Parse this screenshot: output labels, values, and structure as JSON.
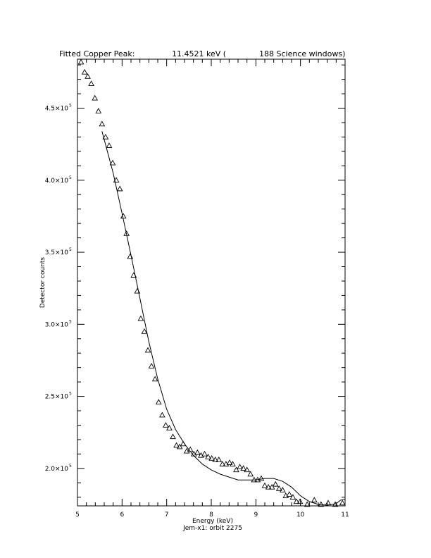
{
  "header": {
    "title_left": "Fitted Copper Peak:",
    "title_mid": "11.4521 keV (",
    "title_right": "188 Science windows)"
  },
  "chart_data": {
    "type": "scatter",
    "title": "Fitted Copper Peak: 11.4521 keV ( 188 Science windows)",
    "xlabel": "Energy (keV)",
    "subtitle": "Jem-x1: orbit 2275",
    "ylabel": "Detector counts",
    "xlim": [
      5,
      11
    ],
    "ylim": [
      174000,
      484000
    ],
    "x_ticks": [
      5,
      6,
      7,
      8,
      9,
      10,
      11
    ],
    "y_ticks": [
      {
        "value": 200000,
        "label": "2.0×10",
        "exp": "5"
      },
      {
        "value": 250000,
        "label": "2.5×10",
        "exp": "5"
      },
      {
        "value": 300000,
        "label": "3.0×10",
        "exp": "5"
      },
      {
        "value": 350000,
        "label": "3.5×10",
        "exp": "5"
      },
      {
        "value": 400000,
        "label": "4.0×10",
        "exp": "5"
      },
      {
        "value": 450000,
        "label": "4.5×10",
        "exp": "5"
      }
    ],
    "series": [
      {
        "marker": "triangle",
        "x": [
          5.08,
          5.16,
          5.23,
          5.31,
          5.39,
          5.47,
          5.55,
          5.63,
          5.71,
          5.79,
          5.87,
          5.95,
          6.03,
          6.1,
          6.18,
          6.26,
          6.34,
          6.42,
          6.5,
          6.58,
          6.66,
          6.74,
          6.82,
          6.9,
          6.98,
          7.06,
          7.14,
          7.22,
          7.29,
          7.37,
          7.45,
          7.53,
          7.61,
          7.69,
          7.77,
          7.85,
          7.93,
          8.01,
          8.09,
          8.17,
          8.25,
          8.33,
          8.41,
          8.48,
          8.56,
          8.64,
          8.72,
          8.8,
          8.88,
          8.96,
          9.04,
          9.12,
          9.2,
          9.28,
          9.36,
          9.44,
          9.52,
          9.6,
          9.67,
          9.75,
          9.83,
          9.91,
          9.99,
          10.15,
          10.31,
          10.46,
          10.62,
          10.78,
          10.94
        ],
        "y": [
          482000,
          475000,
          472000,
          467000,
          457000,
          448000,
          439000,
          430000,
          424000,
          412000,
          400000,
          394000,
          375000,
          363000,
          347000,
          334000,
          323000,
          304000,
          295000,
          282000,
          271000,
          262000,
          246000,
          237000,
          230000,
          228000,
          222000,
          216000,
          215000,
          217000,
          212000,
          213000,
          210000,
          211000,
          209000,
          210000,
          208000,
          207000,
          206000,
          206000,
          203000,
          203000,
          204000,
          203000,
          199000,
          201000,
          200000,
          199000,
          196000,
          192000,
          192000,
          193000,
          188000,
          187000,
          187000,
          189000,
          186000,
          185000,
          181000,
          182000,
          180000,
          177000,
          177000,
          175000,
          178000,
          175000,
          176000,
          175000,
          176000
        ]
      },
      {
        "marker": "line",
        "x": [
          5.55,
          5.8,
          6.0,
          6.2,
          6.4,
          6.6,
          6.8,
          7.0,
          7.2,
          7.4,
          7.6,
          7.8,
          8.0,
          8.2,
          8.4,
          8.6,
          8.8,
          9.0,
          9.2,
          9.4,
          9.6,
          9.8,
          10.0,
          10.2,
          10.4,
          10.6,
          10.8,
          10.9,
          11.0
        ],
        "y": [
          434000,
          405000,
          377000,
          348000,
          318000,
          288000,
          262000,
          241000,
          227000,
          217000,
          209000,
          203000,
          199000,
          196000,
          194000,
          192000,
          192000,
          192000,
          193000,
          193000,
          191000,
          187000,
          181000,
          177000,
          175000,
          174500,
          175500,
          178000,
          178500
        ]
      }
    ]
  }
}
